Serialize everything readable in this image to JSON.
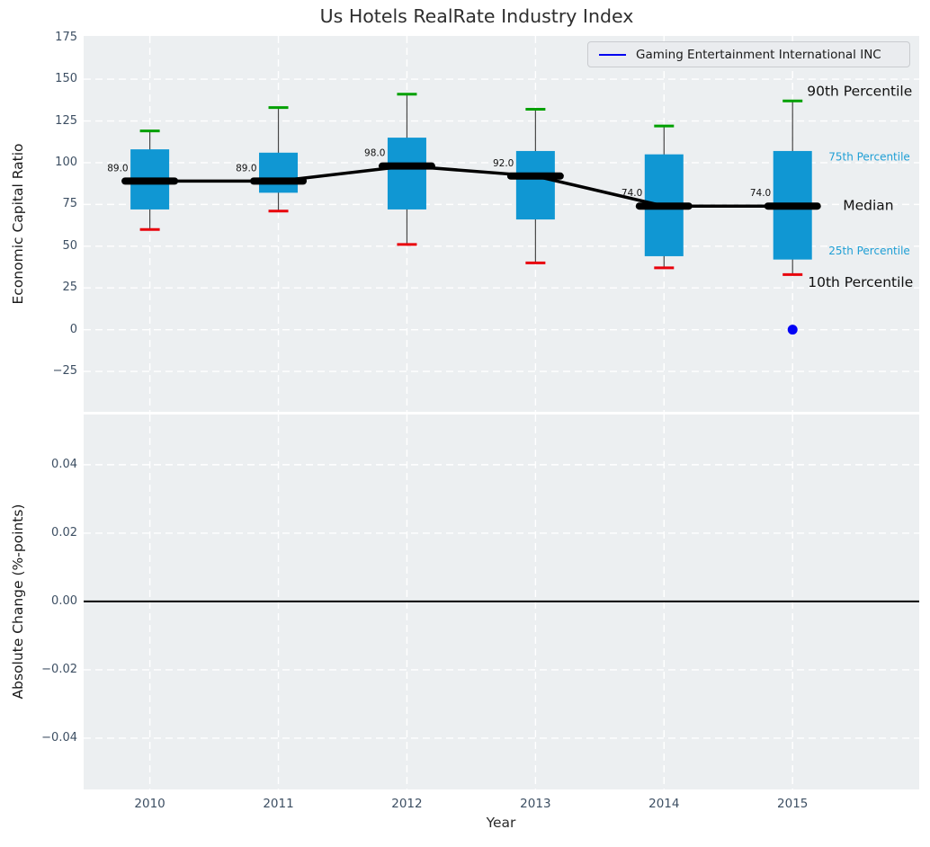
{
  "chart_data": [
    {
      "type": "box",
      "title": "Us Hotels RealRate Industry Index",
      "ylabel": "Economic Capital Ratio",
      "legend_position": "upper right",
      "legend": [
        "Gaming Entertainment International INC"
      ],
      "grid": "white dashed on light gray panel",
      "xlim": [
        2009.485,
        2015.985
      ],
      "ylim": [
        -49.2,
        175.9
      ],
      "ytick_values": [
        175,
        150,
        125,
        100,
        75,
        50,
        25,
        0,
        -25
      ],
      "ytick_labels": [
        "175",
        "150",
        "125",
        "100",
        "75",
        "50",
        "25",
        "0",
        "−25"
      ],
      "categories": [
        2010,
        2011,
        2012,
        2013,
        2014,
        2015
      ],
      "boxes": [
        {
          "year": 2010,
          "p10": 60,
          "q1": 72,
          "median": 89,
          "q3": 108,
          "p90": 119
        },
        {
          "year": 2011,
          "p10": 71,
          "q1": 82,
          "median": 89,
          "q3": 106,
          "p90": 133
        },
        {
          "year": 2012,
          "p10": 51,
          "q1": 72,
          "median": 98,
          "q3": 115,
          "p90": 141
        },
        {
          "year": 2013,
          "p10": 40,
          "q1": 66,
          "median": 92,
          "q3": 107,
          "p90": 132
        },
        {
          "year": 2014,
          "p10": 37,
          "q1": 44,
          "median": 74,
          "q3": 105,
          "p90": 122
        },
        {
          "year": 2015,
          "p10": 33,
          "q1": 42,
          "median": 74,
          "q3": 107,
          "p90": 137
        }
      ],
      "median_labels": [
        "89.0",
        "89.0",
        "98.0",
        "92.0",
        "74.0",
        "74.0"
      ],
      "company_point": {
        "name": "Gaming Entertainment International INC",
        "year": 2015,
        "value": 0
      },
      "annotations": [
        {
          "label": "90th Percentile",
          "anchor": "p90",
          "size": "large"
        },
        {
          "label": "75th Percentile",
          "anchor": "q3",
          "size": "small"
        },
        {
          "label": "Median",
          "anchor": "median",
          "size": "large"
        },
        {
          "label": "25th Percentile",
          "anchor": "q1",
          "size": "small"
        },
        {
          "label": "10th Percentile",
          "anchor": "p10",
          "size": "large"
        }
      ]
    },
    {
      "type": "line",
      "ylabel": "Absolute Change (%-points)",
      "xlabel": "Year",
      "ylim": [
        -0.055,
        0.0547
      ],
      "ytick_values": [
        0.04,
        0.02,
        0.0,
        -0.02,
        -0.04
      ],
      "ytick_labels": [
        "0.04",
        "0.02",
        "0.00",
        "−0.02",
        "−0.04"
      ],
      "xtick_labels": [
        "2010",
        "2011",
        "2012",
        "2013",
        "2014",
        "2015"
      ],
      "zero_line": 0.0,
      "series": []
    }
  ],
  "colors": {
    "box_fill": "#1097d3",
    "p90_cap": "#00a000",
    "p10_cap": "#e8000b",
    "median": "#000000",
    "whisker": "#474747",
    "company_point": "#0202f5",
    "panel_bg": "#eceff1",
    "grid": "#ffffff",
    "zero_line": "#000000",
    "tick_label": "#3d4f63",
    "annotation_small": "#1f9fd5",
    "annotation_large": "#111111"
  }
}
